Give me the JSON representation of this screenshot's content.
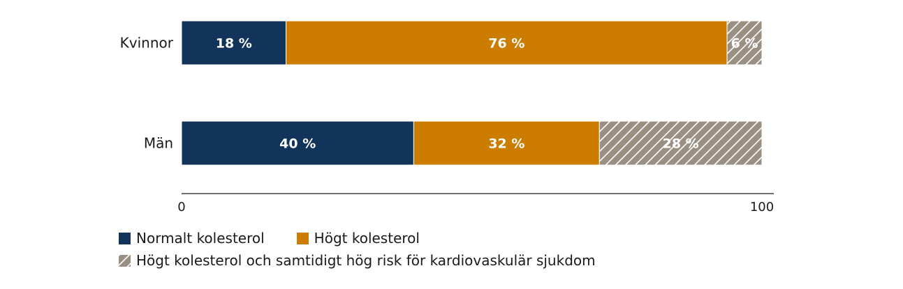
{
  "chart_data": {
    "type": "bar",
    "orientation": "horizontal",
    "stacked": true,
    "categories": [
      "Kvinnor",
      "Män"
    ],
    "series": [
      {
        "name": "Normalt kolesterol",
        "values": [
          18,
          40
        ],
        "labels": [
          "18 %",
          "40 %"
        ],
        "color": "#12335a",
        "pattern": "solid"
      },
      {
        "name": "Högt kolesterol",
        "values": [
          76,
          32
        ],
        "labels": [
          "76 %",
          "32 %"
        ],
        "color": "#cc7d00",
        "pattern": "solid"
      },
      {
        "name": "Högt kolesterol och samtidigt hög risk för kardiovaskulär sjukdom",
        "values": [
          6,
          28
        ],
        "labels": [
          "6 %",
          "28 %"
        ],
        "color": "#9a8f83",
        "pattern": "hatched"
      }
    ],
    "xlim": [
      0,
      100
    ],
    "xticks": [
      "0",
      "100"
    ],
    "grid": false,
    "legend_position": "bottom-left"
  }
}
